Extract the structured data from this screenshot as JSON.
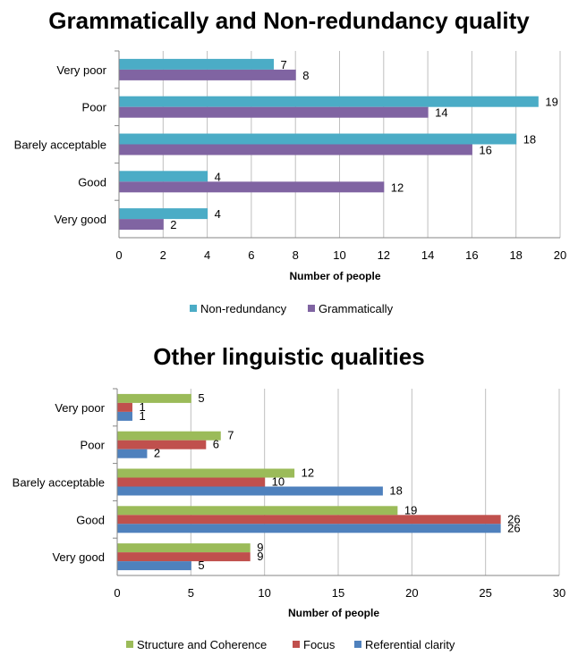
{
  "chart_data": [
    {
      "type": "bar",
      "orientation": "horizontal",
      "title": "Grammatically and Non-redundancy quality",
      "xlabel": "Number of people",
      "ylabel": "",
      "categories": [
        "Very poor",
        "Poor",
        "Barely acceptable",
        "Good",
        "Very good"
      ],
      "series": [
        {
          "name": "Non-redundancy",
          "color": "#4BACC6",
          "values": [
            7,
            19,
            18,
            4,
            4
          ]
        },
        {
          "name": "Grammatically",
          "color": "#8064A2",
          "values": [
            8,
            14,
            16,
            12,
            2
          ]
        }
      ],
      "xlim": [
        0,
        20
      ],
      "xticks": [
        0,
        2,
        4,
        6,
        8,
        10,
        12,
        14,
        16,
        18,
        20
      ],
      "grid": "vertical",
      "legend": "bottom"
    },
    {
      "type": "bar",
      "orientation": "horizontal",
      "title": "Other linguistic qualities",
      "xlabel": "Number of people",
      "ylabel": "",
      "categories": [
        "Very poor",
        "Poor",
        "Barely acceptable",
        "Good",
        "Very good"
      ],
      "series": [
        {
          "name": "Structure and Coherence",
          "color": "#9BBB59",
          "values": [
            5,
            7,
            12,
            19,
            9
          ]
        },
        {
          "name": "Focus",
          "color": "#C0504D",
          "values": [
            1,
            6,
            10,
            26,
            9
          ]
        },
        {
          "name": "Referential clarity",
          "color": "#4F81BD",
          "values": [
            1,
            2,
            18,
            26,
            5
          ]
        }
      ],
      "xlim": [
        0,
        30
      ],
      "xticks": [
        0,
        5,
        10,
        15,
        20,
        25,
        30
      ],
      "grid": "vertical",
      "legend": "bottom"
    }
  ]
}
